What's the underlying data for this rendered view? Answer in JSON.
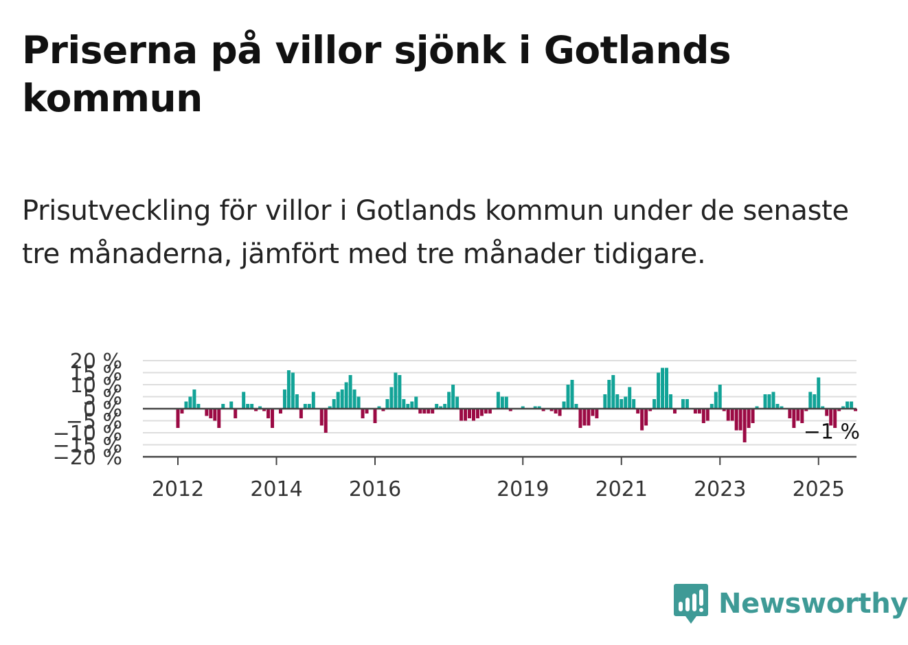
{
  "header": {
    "title": "Priserna på villor sjönk i Gotlands kommun",
    "subtitle": "Prisutveckling för villor i Gotlands kommun under de senaste tre månaderna, jämfört med tre månader tidigare."
  },
  "brand": {
    "name": "Newsworthy",
    "color": "#3e9a96",
    "icon": "newsworthy-logo-icon"
  },
  "colors": {
    "positive": "#12a397",
    "negative": "#9b0a44",
    "grid": "#dddddd",
    "axis": "#444444"
  },
  "chart_data": {
    "type": "bar",
    "xlabel": "",
    "ylabel": "",
    "ylim": [
      -20,
      20
    ],
    "y_ticks": [
      {
        "value": 20,
        "label": "20 %"
      },
      {
        "value": 15,
        "label": "15 %"
      },
      {
        "value": 10,
        "label": "10 %"
      },
      {
        "value": 5,
        "label": "5 %"
      },
      {
        "value": 0,
        "label": "0 %"
      },
      {
        "value": -5,
        "label": "−5 %"
      },
      {
        "value": -10,
        "label": "−10 %"
      },
      {
        "value": -15,
        "label": "−15 %"
      },
      {
        "value": -20,
        "label": "−20 %"
      }
    ],
    "x_ticks": [
      {
        "value": "2012-01",
        "label": "2012"
      },
      {
        "value": "2014-01",
        "label": "2014"
      },
      {
        "value": "2016-01",
        "label": "2016"
      },
      {
        "value": "2019-01",
        "label": "2019"
      },
      {
        "value": "2021-01",
        "label": "2021"
      },
      {
        "value": "2023-01",
        "label": "2023"
      },
      {
        "value": "2025-01",
        "label": "2025"
      }
    ],
    "grid": true,
    "annotation": {
      "label": "−1 %",
      "x": "2025-04",
      "value": -1
    },
    "series": [
      {
        "start": "2012-01",
        "frequency": "monthly",
        "values": [
          -8,
          -2,
          3,
          5,
          8,
          2,
          0,
          -3,
          -4,
          -5,
          -8,
          2,
          0,
          3,
          -4,
          0,
          7,
          2,
          2,
          -1,
          1,
          -1,
          -4,
          -8,
          0,
          -2,
          8,
          16,
          15,
          6,
          -4,
          2,
          2,
          7,
          0,
          -7,
          -10,
          1,
          4,
          7,
          8,
          11,
          14,
          8,
          5,
          -4,
          -2,
          0,
          -6,
          1,
          -1,
          4,
          9,
          15,
          14,
          4,
          2,
          3,
          5,
          -2,
          -2,
          -2,
          -2,
          2,
          1,
          2,
          7,
          10,
          5,
          -5,
          -5,
          -4,
          -5,
          -4,
          -3,
          -2,
          -2,
          0,
          7,
          5,
          5,
          -1,
          0,
          0,
          1,
          0,
          0,
          1,
          1,
          -1,
          0,
          -1,
          -2,
          -3,
          3,
          10,
          12,
          2,
          -8,
          -7,
          -7,
          -3,
          -4,
          0,
          6,
          12,
          14,
          6,
          4,
          5,
          9,
          4,
          -2,
          -9,
          -7,
          -1,
          4,
          15,
          17,
          17,
          6,
          -2,
          0,
          4,
          4,
          0,
          -2,
          -2,
          -6,
          -5,
          2,
          7,
          10,
          -1,
          -5,
          -5,
          -9,
          -9,
          -14,
          -8,
          -6,
          1,
          0,
          6,
          6,
          7,
          2,
          1,
          0,
          -4,
          -8,
          -5,
          -6,
          -1,
          7,
          6,
          13,
          1,
          -3,
          -7,
          -8,
          -1,
          1,
          3,
          3,
          -1
        ]
      }
    ]
  }
}
